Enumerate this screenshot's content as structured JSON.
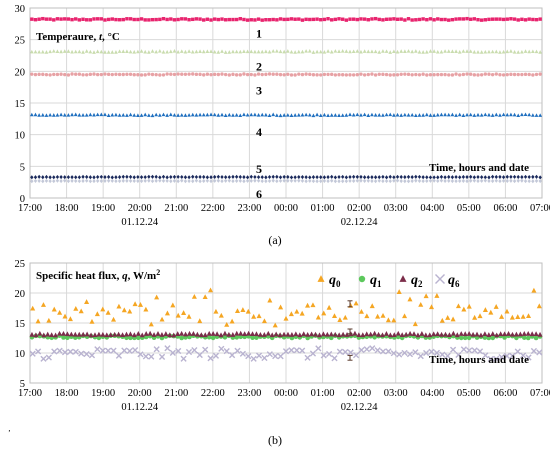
{
  "figure": {
    "caption_a": "(a)",
    "caption_b": "(b)",
    "stray_mark": "‚"
  },
  "chart_data": [
    {
      "type": "scatter",
      "panel": "(a)",
      "title": "",
      "ylabel_parts": [
        "Temperaure,",
        "t",
        ", °C"
      ],
      "xlabel": "Time, hours and date",
      "x_tick_labels": [
        "17:00",
        "18:00",
        "19:00",
        "20:00",
        "21:00",
        "22:00",
        "23:00",
        "00:00",
        "01:00",
        "02:00",
        "03:00",
        "04:00",
        "05:00",
        "06:00",
        "07:00"
      ],
      "date_labels": [
        {
          "at": "20:00",
          "text": "01.12.24"
        },
        {
          "at": "02:00",
          "text": "02.12.24"
        }
      ],
      "x_start": "17:00",
      "x_end": "07:00",
      "ylim": [
        0,
        30
      ],
      "y_ticks": [
        0,
        5,
        10,
        15,
        20,
        25,
        30
      ],
      "grid": true,
      "legend": "none",
      "series": [
        {
          "name": "1",
          "marker": "square",
          "color": "#e8246e",
          "mean": 28.2,
          "noise": 0.12,
          "points": 140
        },
        {
          "name": "2",
          "marker": "triangle",
          "color": "#c9dcae",
          "mean": 23.1,
          "noise": 0.1,
          "points": 140
        },
        {
          "name": "3",
          "marker": "circle",
          "color": "#e7a1a4",
          "mean": 19.5,
          "noise": 0.08,
          "points": 140
        },
        {
          "name": "4",
          "marker": "triangle",
          "color": "#1f6fbf",
          "mean": 13.1,
          "noise": 0.08,
          "points": 140
        },
        {
          "name": "5",
          "marker": "diamond",
          "color": "#1b2a5c",
          "mean": 3.3,
          "noise": 0.05,
          "points": 140
        },
        {
          "name": "6",
          "marker": "diamond",
          "color": "#c3c8d8",
          "mean": 2.7,
          "noise": 0.05,
          "points": 140
        }
      ]
    },
    {
      "type": "scatter",
      "panel": "(b)",
      "title": "",
      "ylabel_parts": [
        "Specific heat flux,",
        "q",
        ", W/m",
        "2"
      ],
      "xlabel": "Time, hours and date",
      "x_tick_labels": [
        "17:00",
        "18:00",
        "19:00",
        "20:00",
        "21:00",
        "22:00",
        "23:00",
        "00:00",
        "01:00",
        "02:00",
        "03:00",
        "04:00",
        "05:00",
        "06:00",
        "07:00"
      ],
      "date_labels": [
        {
          "at": "20:00",
          "text": "01.12.24"
        },
        {
          "at": "02:00",
          "text": "02.12.24"
        }
      ],
      "x_start": "17:00",
      "x_end": "07:00",
      "ylim": [
        5,
        25
      ],
      "y_ticks": [
        5,
        10,
        15,
        20,
        25
      ],
      "grid": true,
      "legend": "top-right",
      "error_bars": [
        {
          "x": "01:45",
          "y": 18.2,
          "err": 0.5
        },
        {
          "x": "01:45",
          "y": 13.6,
          "err": 0.4
        },
        {
          "x": "01:45",
          "y": 9.2,
          "err": 0.4
        }
      ],
      "series": [
        {
          "name": "q0",
          "label_base": "q",
          "label_sub": "0",
          "marker": "triangle",
          "color": "#f5a623",
          "mean": 16.2,
          "noise": 1.8,
          "points": 95
        },
        {
          "name": "q1",
          "label_base": "q",
          "label_sub": "1",
          "marker": "circle",
          "color": "#5cc85c",
          "mean": 12.7,
          "noise": 0.2,
          "points": 130
        },
        {
          "name": "q2",
          "label_base": "q",
          "label_sub": "2",
          "marker": "triangle",
          "color": "#7b2d4a",
          "mean": 13.1,
          "noise": 0.15,
          "points": 130
        },
        {
          "name": "q6",
          "label_base": "q",
          "label_sub": "6",
          "marker": "x",
          "color": "#b9b3d0",
          "mean": 9.9,
          "noise": 0.9,
          "points": 95
        }
      ]
    }
  ]
}
